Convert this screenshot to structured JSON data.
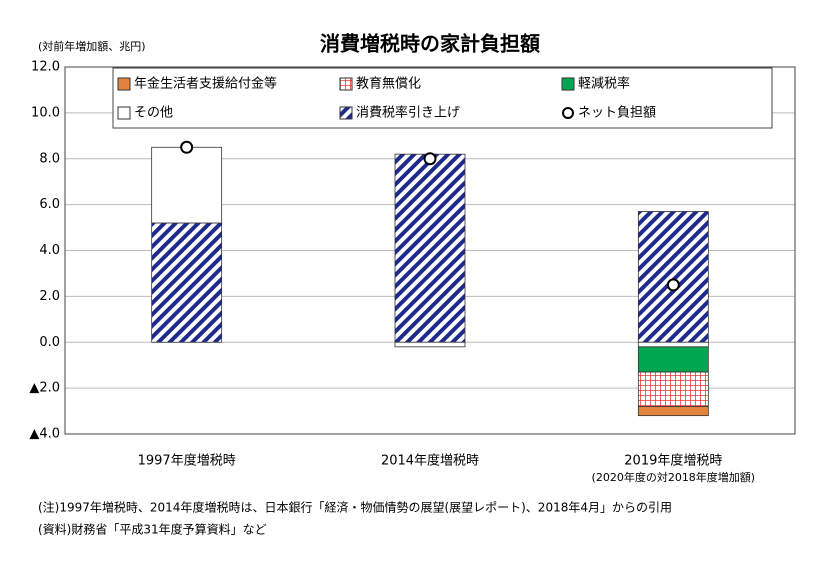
{
  "chart_data": {
    "type": "bar",
    "title": "消費増税時の家計負担額",
    "y_label": "(対前年増加額、兆円)",
    "categories": [
      "1997年度増税時",
      "2014年度増税時",
      "2019年度増税時"
    ],
    "category_notes": [
      null,
      null,
      "(2020年度の対2018年度増加額)"
    ],
    "series": [
      {
        "name": "年金生活者支援給付金等",
        "color": "#e0843f",
        "values": [
          null,
          null,
          -0.4
        ]
      },
      {
        "name": "教育無償化",
        "color": "#e23a3a",
        "pattern": "grid",
        "values": [
          null,
          null,
          -1.5
        ]
      },
      {
        "name": "軽減税率",
        "color": "#00a650",
        "values": [
          null,
          null,
          -1.1
        ]
      },
      {
        "name": "その他",
        "color": "#ffffff",
        "values": [
          3.3,
          -0.2,
          -0.2
        ]
      },
      {
        "name": "消費税率引き上げ",
        "color": "#1e2a8c",
        "pattern": "hatch",
        "values": [
          5.2,
          8.2,
          5.7
        ]
      },
      {
        "name": "ネット負担額",
        "type": "scatter",
        "color": "#ffffff",
        "values": [
          8.5,
          8.0,
          2.5
        ]
      }
    ],
    "ylim": [
      -4,
      12
    ],
    "yticks": [
      {
        "value": -4,
        "label": "▲4.0"
      },
      {
        "value": -2,
        "label": "▲2.0"
      },
      {
        "value": 0,
        "label": "0.0"
      },
      {
        "value": 2,
        "label": "2.0"
      },
      {
        "value": 4,
        "label": "4.0"
      },
      {
        "value": 6,
        "label": "6.0"
      },
      {
        "value": 8,
        "label": "8.0"
      },
      {
        "value": 10,
        "label": "10.0"
      },
      {
        "value": 12,
        "label": "12.0"
      }
    ],
    "grid": true,
    "notes": [
      "(注)1997年増税時、2014年度増税時は、日本銀行「経済・物価情勢の展望(展望レポート)、2018年4月」からの引用",
      "(資料)財務省「平成31年度予算資料」など"
    ]
  }
}
